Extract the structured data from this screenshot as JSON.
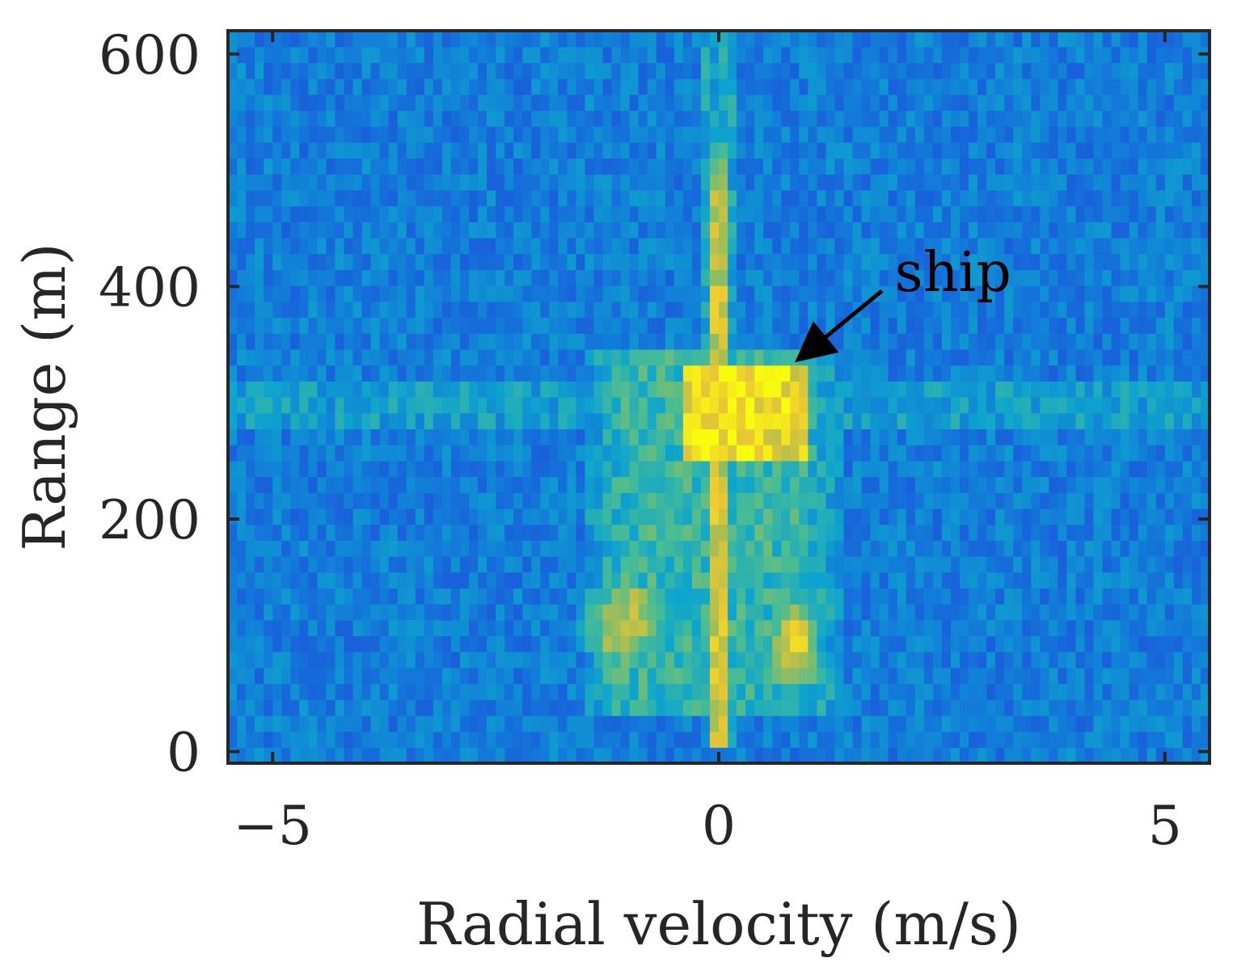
{
  "chart_data": {
    "type": "heatmap",
    "title": "",
    "xlabel": "Radial velocity (m/s)",
    "ylabel": "Range (m)",
    "xlim": [
      -5.5,
      5.5
    ],
    "ylim": [
      -10,
      620
    ],
    "x_ticks": [
      -5,
      0,
      5
    ],
    "x_tick_labels": [
      "−5",
      "0",
      "5"
    ],
    "y_ticks": [
      0,
      200,
      400,
      600
    ],
    "y_tick_labels": [
      "0",
      "200",
      "400",
      "600"
    ],
    "colormap": "parula",
    "grid": false,
    "legend": "none",
    "features": [
      {
        "kind": "vertical-streak",
        "x_center": 0.0,
        "x_halfwidth": 0.13,
        "y_range": [
          0,
          560
        ],
        "level": 0.8
      },
      {
        "kind": "horizontal-band",
        "y_center": 293,
        "y_halfwidth": 22,
        "level": 0.42
      },
      {
        "kind": "bright-block",
        "x_range": [
          -0.4,
          1.0
        ],
        "y_range": [
          255,
          330
        ],
        "level": 0.95
      },
      {
        "kind": "lobe",
        "x_center": -1.05,
        "y_center": 110,
        "x_sigma": 0.42,
        "y_sigma": 55,
        "level": 0.78
      },
      {
        "kind": "lobe",
        "x_center": 0.85,
        "y_center": 95,
        "x_sigma": 0.28,
        "y_sigma": 45,
        "level": 0.9
      },
      {
        "kind": "diffuse-region",
        "x_range": [
          -1.5,
          1.4
        ],
        "y_range": [
          25,
          340
        ],
        "level": 0.55
      }
    ],
    "annotations": [
      {
        "text": "ship",
        "arrow_to": [
          0.85,
          335
        ]
      }
    ],
    "colors": {
      "low": "#3a3dd6",
      "mid": "#1aa8d4",
      "high": "#f9fb0e",
      "axes": "#262626"
    }
  }
}
